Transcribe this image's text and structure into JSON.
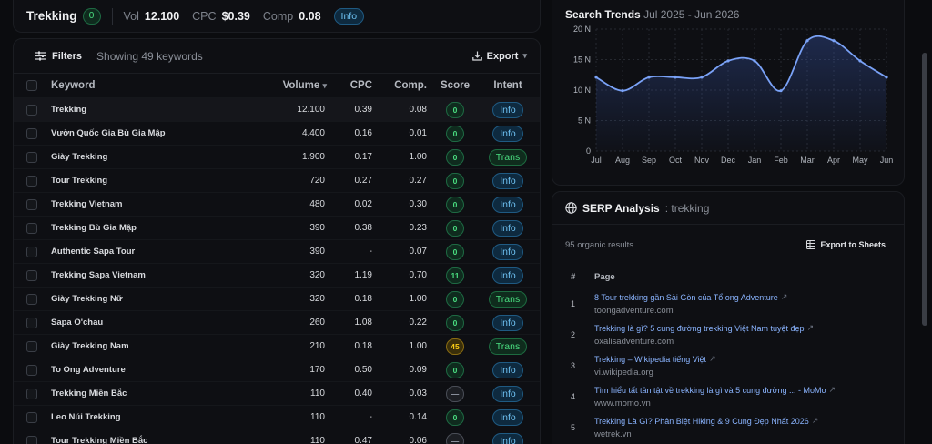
{
  "summary": {
    "keyword": "Trekking",
    "score": "0",
    "vol_label": "Vol",
    "vol_value": "12.100",
    "cpc_label": "CPC",
    "cpc_value": "$0.39",
    "comp_label": "Comp",
    "comp_value": "0.08",
    "intent": "Info"
  },
  "toolbar": {
    "filters_label": "Filters",
    "showing_text": "Showing 49 keywords",
    "export_label": "Export"
  },
  "table": {
    "headers": {
      "keyword": "Keyword",
      "volume": "Volume",
      "cpc": "CPC",
      "comp": "Comp.",
      "score": "Score",
      "intent": "Intent"
    },
    "rows": [
      {
        "keyword": "Trekking",
        "volume": "12.100",
        "cpc": "0.39",
        "comp": "0.08",
        "score": "0",
        "score_color": "green",
        "intent": "Info"
      },
      {
        "keyword": "Vườn Quốc Gia Bù Gia Mập",
        "volume": "4.400",
        "cpc": "0.16",
        "comp": "0.01",
        "score": "0",
        "score_color": "green",
        "intent": "Info"
      },
      {
        "keyword": "Giày Trekking",
        "volume": "1.900",
        "cpc": "0.17",
        "comp": "1.00",
        "score": "0",
        "score_color": "green",
        "intent": "Trans"
      },
      {
        "keyword": "Tour Trekking",
        "volume": "720",
        "cpc": "0.27",
        "comp": "0.27",
        "score": "0",
        "score_color": "green",
        "intent": "Info"
      },
      {
        "keyword": "Trekking Vietnam",
        "volume": "480",
        "cpc": "0.02",
        "comp": "0.30",
        "score": "0",
        "score_color": "green",
        "intent": "Info"
      },
      {
        "keyword": "Trekking Bù Gia Mập",
        "volume": "390",
        "cpc": "0.38",
        "comp": "0.23",
        "score": "0",
        "score_color": "green",
        "intent": "Info"
      },
      {
        "keyword": "Authentic Sapa Tour",
        "volume": "390",
        "cpc": "-",
        "comp": "0.07",
        "score": "0",
        "score_color": "green",
        "intent": "Info"
      },
      {
        "keyword": "Trekking Sapa Vietnam",
        "volume": "320",
        "cpc": "1.19",
        "comp": "0.70",
        "score": "11",
        "score_color": "green",
        "intent": "Info"
      },
      {
        "keyword": "Giày Trekking Nữ",
        "volume": "320",
        "cpc": "0.18",
        "comp": "1.00",
        "score": "0",
        "score_color": "green",
        "intent": "Trans"
      },
      {
        "keyword": "Sapa O'chau",
        "volume": "260",
        "cpc": "1.08",
        "comp": "0.22",
        "score": "0",
        "score_color": "green",
        "intent": "Info"
      },
      {
        "keyword": "Giày Trekking Nam",
        "volume": "210",
        "cpc": "0.18",
        "comp": "1.00",
        "score": "45",
        "score_color": "yellow",
        "intent": "Trans"
      },
      {
        "keyword": "To Ong Adventure",
        "volume": "170",
        "cpc": "0.50",
        "comp": "0.09",
        "score": "0",
        "score_color": "green",
        "intent": "Info"
      },
      {
        "keyword": "Trekking Miền Bắc",
        "volume": "110",
        "cpc": "0.40",
        "comp": "0.03",
        "score": "—",
        "score_color": "gray",
        "intent": "Info"
      },
      {
        "keyword": "Leo Núi Trekking",
        "volume": "110",
        "cpc": "-",
        "comp": "0.14",
        "score": "0",
        "score_color": "green",
        "intent": "Info"
      },
      {
        "keyword": "Tour Trekking Miền Bắc",
        "volume": "110",
        "cpc": "0.47",
        "comp": "0.06",
        "score": "—",
        "score_color": "gray",
        "intent": "Info"
      }
    ]
  },
  "trends": {
    "title": "Search Trends",
    "range": "Jul 2025 - Jun 2026"
  },
  "chart_data": {
    "type": "area",
    "title": "Search Trends",
    "subtitle": "Jul 2025 - Jun 2026",
    "categories": [
      "Jul",
      "Aug",
      "Sep",
      "Oct",
      "Nov",
      "Dec",
      "Jan",
      "Feb",
      "Mar",
      "Apr",
      "May",
      "Jun"
    ],
    "values": [
      12100,
      9900,
      12100,
      12100,
      12100,
      14800,
      14800,
      9900,
      18100,
      18100,
      14800,
      12100
    ],
    "yticks": [
      "0",
      "5 N",
      "10 N",
      "15 N",
      "20 N"
    ],
    "ylim": [
      0,
      20000
    ],
    "grid": true,
    "line_color": "#7aa2f7"
  },
  "serp": {
    "title": "SERP Analysis",
    "keyword": ": trekking",
    "count_text": "95 organic results",
    "export_label": "Export to Sheets",
    "col_num": "#",
    "col_page": "Page",
    "results": [
      {
        "n": "1",
        "title": "8 Tour trekking gần Sài Gòn của Tổ ong Adventure",
        "domain": "toongadventure.com"
      },
      {
        "n": "2",
        "title": "Trekking là gì? 5 cung đường trekking Việt Nam tuyệt đẹp",
        "domain": "oxalisadventure.com"
      },
      {
        "n": "3",
        "title": "Trekking – Wikipedia tiếng Việt",
        "domain": "vi.wikipedia.org"
      },
      {
        "n": "4",
        "title": "Tìm hiểu tất tần tật về trekking là gì và 5 cung đường ... - MoMo",
        "domain": "www.momo.vn"
      },
      {
        "n": "5",
        "title": "Trekking Là Gì? Phân Biệt Hiking & 9 Cung Đẹp Nhất 2026",
        "domain": "wetrek.vn"
      }
    ]
  }
}
